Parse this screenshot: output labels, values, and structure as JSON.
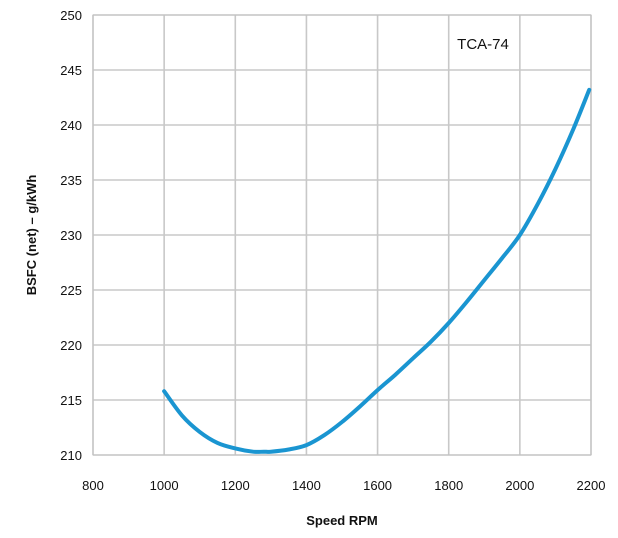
{
  "chart_data": {
    "type": "line",
    "title": "",
    "xlabel": "Speed RPM",
    "ylabel": "BSFC (net) – g/kWh",
    "xlim": [
      800,
      2200
    ],
    "ylim": [
      210,
      250
    ],
    "x_ticks": [
      800,
      1000,
      1200,
      1400,
      1600,
      1800,
      2000,
      2200
    ],
    "y_ticks": [
      210,
      215,
      220,
      225,
      230,
      235,
      240,
      245,
      250
    ],
    "grid": true,
    "annotation": "TCA-74",
    "series_color": "#1a95d1",
    "grid_color": "#c8c8c8",
    "frame_color": "#c0c0c0",
    "series": [
      {
        "x": [
          1000,
          1050,
          1100,
          1150,
          1200,
          1250,
          1280,
          1300,
          1350,
          1400,
          1450,
          1500,
          1550,
          1600,
          1650,
          1700,
          1750,
          1800,
          1850,
          1900,
          1950,
          2000,
          2050,
          2100,
          2150,
          2195
        ],
        "y": [
          215.8,
          213.6,
          212.1,
          211.1,
          210.6,
          210.3,
          210.3,
          210.3,
          210.5,
          210.9,
          211.8,
          213.0,
          214.4,
          215.9,
          217.3,
          218.8,
          220.3,
          222.0,
          223.9,
          225.9,
          227.9,
          230.0,
          232.8,
          236.0,
          239.6,
          243.2
        ]
      }
    ]
  }
}
